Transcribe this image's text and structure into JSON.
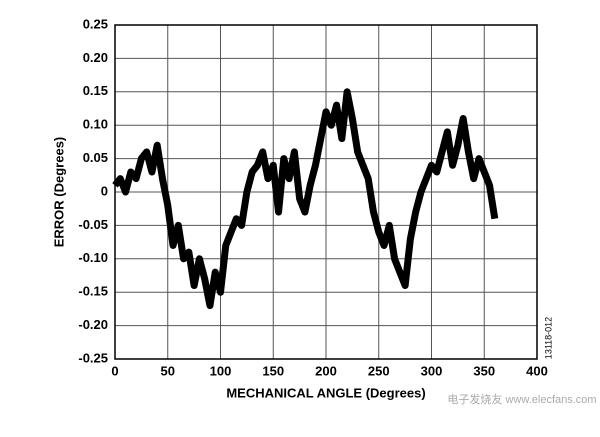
{
  "chart_data": {
    "type": "line",
    "xlabel": "MECHANICAL ANGLE (Degrees)",
    "ylabel": "ERROR (Degrees)",
    "annotations": [
      "13118-012",
      "电子发烧友 www.elecfans.com"
    ],
    "x": [
      0,
      5,
      10,
      15,
      20,
      25,
      30,
      35,
      40,
      45,
      50,
      55,
      60,
      65,
      70,
      75,
      80,
      85,
      90,
      95,
      100,
      105,
      110,
      115,
      120,
      125,
      130,
      135,
      140,
      145,
      150,
      155,
      160,
      165,
      170,
      175,
      180,
      185,
      190,
      195,
      200,
      205,
      210,
      215,
      220,
      225,
      230,
      235,
      240,
      245,
      250,
      255,
      260,
      265,
      270,
      275,
      280,
      285,
      290,
      295,
      300,
      305,
      310,
      315,
      320,
      325,
      330,
      335,
      340,
      345,
      350,
      355,
      360
    ],
    "series": [
      {
        "color": "#000000",
        "values": [
          0.01,
          0.02,
          0.0,
          0.03,
          0.02,
          0.05,
          0.06,
          0.03,
          0.07,
          0.02,
          -0.02,
          -0.08,
          -0.05,
          -0.1,
          -0.09,
          -0.14,
          -0.1,
          -0.13,
          -0.17,
          -0.12,
          -0.15,
          -0.08,
          -0.06,
          -0.04,
          -0.05,
          0.0,
          0.03,
          0.04,
          0.06,
          0.02,
          0.04,
          -0.03,
          0.05,
          0.02,
          0.06,
          -0.01,
          -0.03,
          0.01,
          0.04,
          0.08,
          0.12,
          0.1,
          0.13,
          0.08,
          0.15,
          0.11,
          0.06,
          0.04,
          0.02,
          -0.03,
          -0.06,
          -0.08,
          -0.05,
          -0.1,
          -0.12,
          -0.14,
          -0.07,
          -0.03,
          0.0,
          0.02,
          0.04,
          0.03,
          0.06,
          0.09,
          0.04,
          0.07,
          0.11,
          0.06,
          0.02,
          0.05,
          0.03,
          0.01,
          -0.04
        ]
      }
    ],
    "xlim": [
      0,
      400
    ],
    "xticks": [
      0,
      50,
      100,
      150,
      200,
      250,
      300,
      350,
      400
    ],
    "ylim": [
      -0.25,
      0.25
    ],
    "yticks": [
      0.25,
      {
        "value": 0.2,
        "label": "0.20"
      },
      0.15,
      {
        "value": 0.1,
        "label": "0.10"
      },
      0.05,
      0,
      -0.05,
      {
        "value": -0.1,
        "label": "-0.10"
      },
      -0.15,
      {
        "value": -0.2,
        "label": "-0.20"
      },
      -0.25
    ],
    "grid": true
  }
}
